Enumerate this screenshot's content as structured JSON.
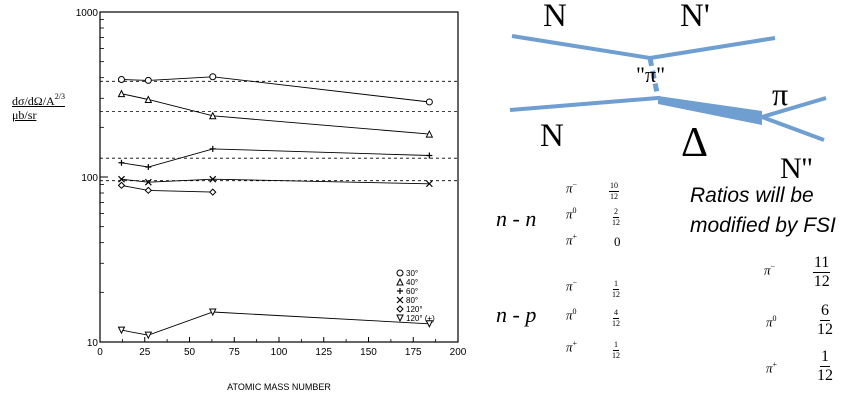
{
  "chart_data": {
    "type": "scatter",
    "xscale": "linear",
    "yscale": "log",
    "xlim": [
      0,
      200
    ],
    "ylim": [
      10,
      1000
    ],
    "xlabel": "ATOMIC MASS NUMBER",
    "ylabel_lines": [
      "dσ/dΩ/A",
      "μb/sr"
    ],
    "ylabel_exponent": "2/3",
    "x_ticks": [
      "0",
      "25",
      "50",
      "75",
      "100",
      "125",
      "150",
      "175",
      "200"
    ],
    "y_ticks": [
      "10",
      "100",
      "1000"
    ],
    "legend_position": "inside-lower-right",
    "series": [
      {
        "name": "30°",
        "marker": "circle",
        "x": [
          12,
          27,
          63,
          184
        ],
        "y": [
          390,
          385,
          405,
          285
        ]
      },
      {
        "name": "40°",
        "marker": "triangle",
        "x": [
          12,
          27,
          63,
          184
        ],
        "y": [
          320,
          295,
          235,
          182
        ]
      },
      {
        "name": "60°",
        "marker": "plus",
        "x": [
          12,
          27,
          63,
          184
        ],
        "y": [
          122,
          115,
          148,
          135
        ]
      },
      {
        "name": "80°",
        "marker": "cross",
        "x": [
          12,
          27,
          63,
          184
        ],
        "y": [
          97,
          93,
          97,
          91
        ]
      },
      {
        "name": "120°",
        "marker": "diamond",
        "x": [
          12,
          27,
          63
        ],
        "y": [
          89,
          83,
          81
        ]
      },
      {
        "name": "120° (+)",
        "marker": "invtriangle",
        "x": [
          12,
          27,
          63,
          184
        ],
        "y": [
          11.8,
          11.0,
          15.2,
          12.9
        ]
      }
    ],
    "reference_lines": [
      380,
      250,
      130,
      95
    ]
  },
  "feynman": {
    "labels": {
      "n_top_left": "N",
      "n_top_right": "N'",
      "pion_exchange": "\"π\"",
      "n_bottom": "N",
      "delta": "Δ",
      "pi_out": "π",
      "n_out": "N''"
    }
  },
  "ratios": {
    "nn_label": "n - n",
    "np_label": "n - p",
    "nn": [
      {
        "pi": "π",
        "charge": "−",
        "num": "10",
        "den": "12"
      },
      {
        "pi": "π",
        "charge": "0",
        "num": "2",
        "den": "12"
      },
      {
        "pi": "π",
        "charge": "+",
        "value": "0"
      }
    ],
    "np": [
      {
        "pi": "π",
        "charge": "−",
        "num": "1",
        "den": "12"
      },
      {
        "pi": "π",
        "charge": "0",
        "num": "4",
        "den": "12"
      },
      {
        "pi": "π",
        "charge": "+",
        "num": "1",
        "den": "12"
      }
    ],
    "fsi_note_lines": [
      "Ratios will be",
      "modified by FSI"
    ],
    "fsi": [
      {
        "pi": "π",
        "charge": "−",
        "num": "11",
        "den": "12"
      },
      {
        "pi": "π",
        "charge": "0",
        "num": "6",
        "den": "12"
      },
      {
        "pi": "π",
        "charge": "+",
        "num": "1",
        "den": "12"
      }
    ]
  }
}
